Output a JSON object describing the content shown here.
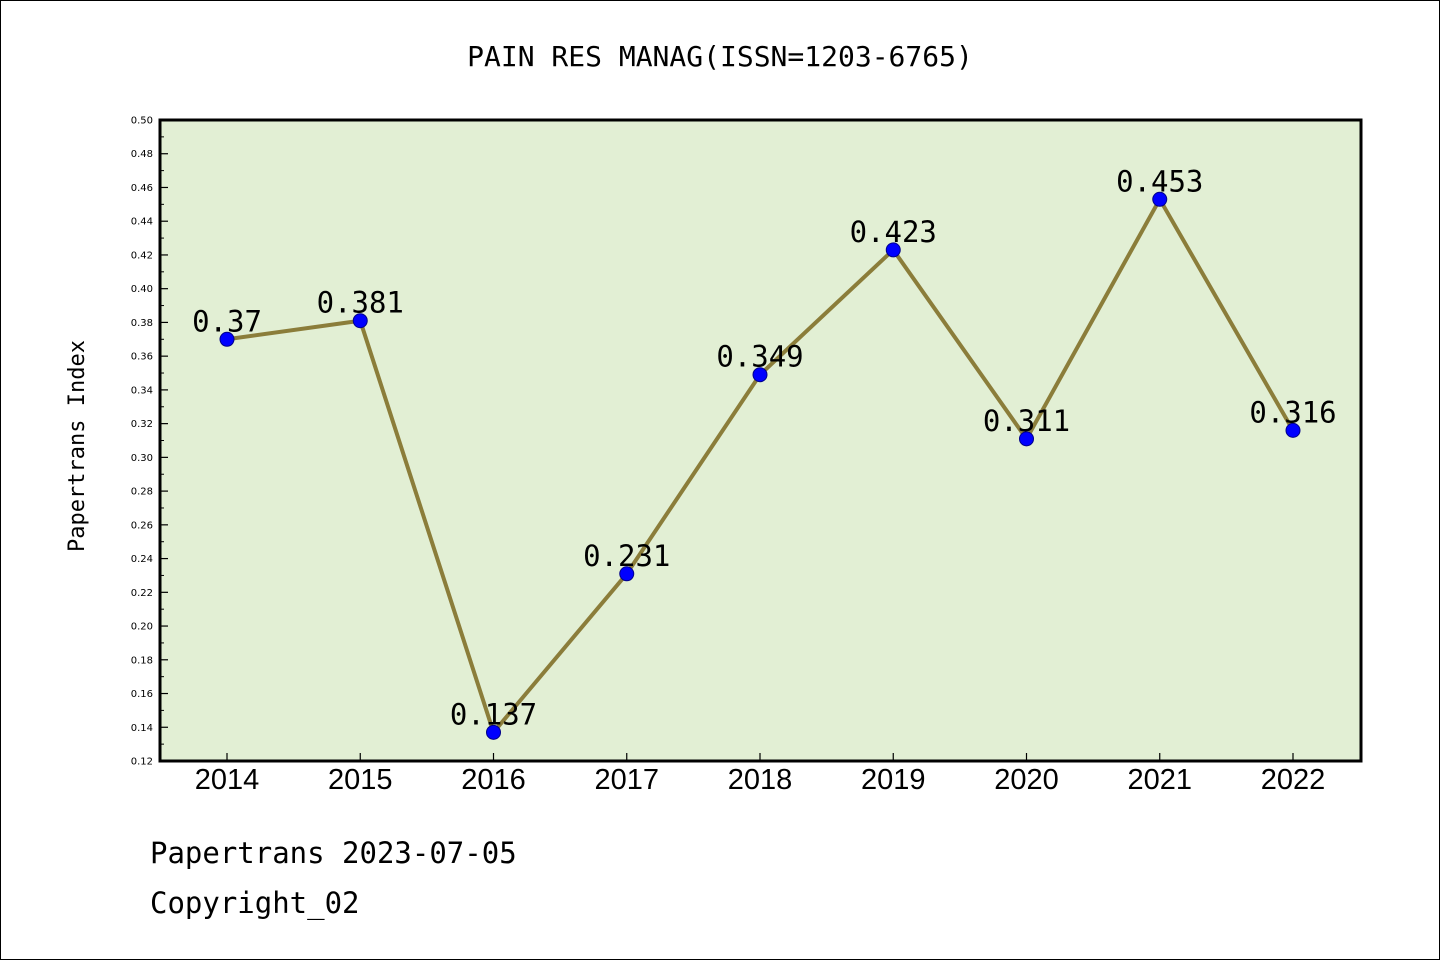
{
  "chart_data": {
    "type": "line",
    "title": "PAIN RES MANAG(ISSN=1203-6765)",
    "xlabel": "",
    "ylabel": "Papertrans Index",
    "categories": [
      "2014",
      "2015",
      "2016",
      "2017",
      "2018",
      "2019",
      "2020",
      "2021",
      "2022"
    ],
    "series": [
      {
        "values": [
          0.37,
          0.381,
          0.137,
          0.231,
          0.349,
          0.423,
          0.311,
          0.453,
          0.316
        ]
      }
    ],
    "data_labels": [
      "0.37",
      "0.381",
      "0.137",
      "0.231",
      "0.349",
      "0.423",
      "0.311",
      "0.453",
      "0.316"
    ],
    "ylim": [
      0.12,
      0.5
    ],
    "yticks": [
      "0.12",
      "0.14",
      "0.16",
      "0.18",
      "0.20",
      "0.22",
      "0.24",
      "0.26",
      "0.28",
      "0.30",
      "0.32",
      "0.34",
      "0.36",
      "0.38",
      "0.40",
      "0.42",
      "0.44",
      "0.46",
      "0.48",
      "0.50"
    ],
    "grid": false,
    "legend": "none",
    "colors": {
      "plot_background": "#e2efd4",
      "line": "#8b7d3a",
      "marker": "#0000ff"
    }
  },
  "footer": {
    "date_line": "Papertrans 2023-07-05",
    "copyright_line": "Copyright_02"
  }
}
